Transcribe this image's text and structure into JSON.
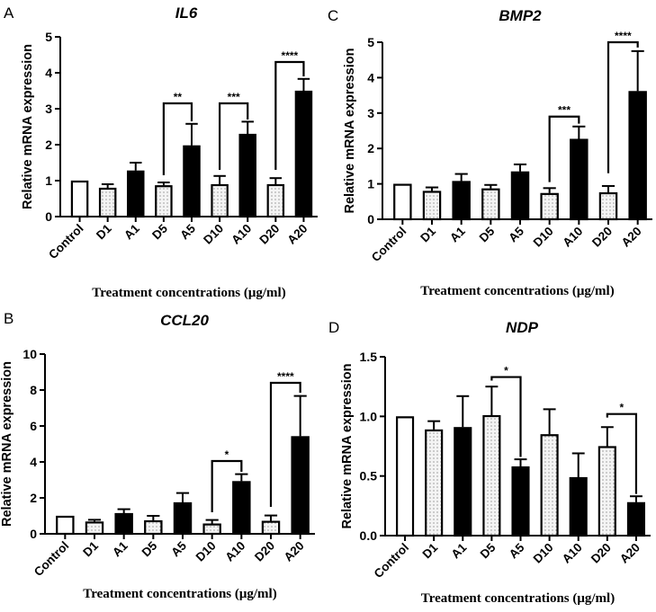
{
  "chart_data": [
    {
      "type": "bar",
      "panel_label": "A",
      "title": "IL6",
      "xlabel": "Treatment concentrations (μg/ml)",
      "ylabel": "Relative mRNA expression",
      "ylim": [
        0,
        5
      ],
      "yticks": [
        "0",
        "1",
        "2",
        "3",
        "4",
        "5"
      ],
      "categories": [
        "Control",
        "D1",
        "A1",
        "D5",
        "A5",
        "D10",
        "A10",
        "D20",
        "A20"
      ],
      "bar_styles": [
        "open",
        "dotted",
        "solid",
        "dotted",
        "solid",
        "dotted",
        "solid",
        "dotted",
        "solid"
      ],
      "values": [
        1.0,
        0.8,
        1.28,
        0.87,
        1.98,
        0.9,
        2.3,
        0.9,
        3.5
      ],
      "errors": [
        0,
        0.1,
        0.22,
        0.08,
        0.6,
        0.23,
        0.34,
        0.17,
        0.33
      ],
      "significance": [
        {
          "from": "D5",
          "to": "A5",
          "label": "**",
          "level": 3.15,
          "left_end": 1.15,
          "right_end": 2.65
        },
        {
          "from": "D10",
          "to": "A10",
          "label": "***",
          "level": 3.15,
          "left_end": 1.3,
          "right_end": 2.7
        },
        {
          "from": "D20",
          "to": "A20",
          "label": "****",
          "level": 4.3,
          "left_end": 1.3,
          "right_end": 3.9
        }
      ]
    },
    {
      "type": "bar",
      "panel_label": "C",
      "title": "BMP2",
      "xlabel": "Treatment concentrations (μg/ml)",
      "ylabel": "Relative mRNA expression",
      "ylim": [
        0,
        5
      ],
      "yticks": [
        "0",
        "1",
        "2",
        "3",
        "4",
        "5"
      ],
      "categories": [
        "Control",
        "D1",
        "A1",
        "D5",
        "A5",
        "D10",
        "A10",
        "D20",
        "A20"
      ],
      "bar_styles": [
        "open",
        "dotted",
        "solid",
        "dotted",
        "solid",
        "dotted",
        "solid",
        "dotted",
        "solid"
      ],
      "values": [
        1.0,
        0.8,
        1.08,
        0.87,
        1.35,
        0.74,
        2.27,
        0.76,
        3.62
      ],
      "errors": [
        0,
        0.1,
        0.2,
        0.1,
        0.2,
        0.14,
        0.35,
        0.18,
        1.13
      ],
      "significance": [
        {
          "from": "D10",
          "to": "A10",
          "label": "***",
          "level": 2.9,
          "left_end": 1.05,
          "right_end": 2.7
        },
        {
          "from": "D20",
          "to": "A20",
          "label": "****",
          "level": 5.0,
          "left_end": 1.3,
          "right_end": 4.85
        }
      ]
    },
    {
      "type": "bar",
      "panel_label": "B",
      "title": "CCL20",
      "xlabel": "Treatment concentrations (μg/ml)",
      "ylabel": "Relative mRNA expression",
      "ylim": [
        0,
        10
      ],
      "yticks": [
        "0",
        "2",
        "4",
        "6",
        "8",
        "10"
      ],
      "categories": [
        "Control",
        "D1",
        "A1",
        "D5",
        "A5",
        "D10",
        "A10",
        "D20",
        "A20"
      ],
      "bar_styles": [
        "open",
        "dotted",
        "solid",
        "dotted",
        "solid",
        "dotted",
        "solid",
        "dotted",
        "solid"
      ],
      "values": [
        1.0,
        0.68,
        1.15,
        0.75,
        1.75,
        0.57,
        2.93,
        0.72,
        5.43
      ],
      "errors": [
        0,
        0.1,
        0.22,
        0.25,
        0.52,
        0.2,
        0.39,
        0.3,
        2.24
      ],
      "significance": [
        {
          "from": "D10",
          "to": "A10",
          "label": "*",
          "level": 4.05,
          "left_end": 1.2,
          "right_end": 3.45
        },
        {
          "from": "D20",
          "to": "A20",
          "label": "****",
          "level": 8.4,
          "left_end": 1.5,
          "right_end": 7.85
        }
      ]
    },
    {
      "type": "bar",
      "panel_label": "D",
      "title": "NDP",
      "xlabel": "Treatment concentrations (μg/ml)",
      "ylabel": "Relative mRNA expression",
      "ylim": [
        0,
        1.5
      ],
      "yticks": [
        "0.0",
        "0.5",
        "1.0",
        "1.5"
      ],
      "categories": [
        "Control",
        "D1",
        "A1",
        "D5",
        "A5",
        "D10",
        "A10",
        "D20",
        "A20"
      ],
      "bar_styles": [
        "open",
        "dotted",
        "solid",
        "dotted",
        "solid",
        "dotted",
        "solid",
        "dotted",
        "solid"
      ],
      "values": [
        1.0,
        0.89,
        0.91,
        1.01,
        0.58,
        0.85,
        0.49,
        0.75,
        0.28
      ],
      "errors": [
        0,
        0.07,
        0.26,
        0.24,
        0.06,
        0.21,
        0.2,
        0.16,
        0.05
      ],
      "significance": [
        {
          "from": "D5",
          "to": "A5",
          "label": "*",
          "level": 1.33,
          "left_end": 1.3,
          "right_end": 0.66
        },
        {
          "from": "D20",
          "to": "A20",
          "label": "*",
          "level": 1.02,
          "left_end": 0.99,
          "right_end": 0.35
        }
      ]
    }
  ]
}
